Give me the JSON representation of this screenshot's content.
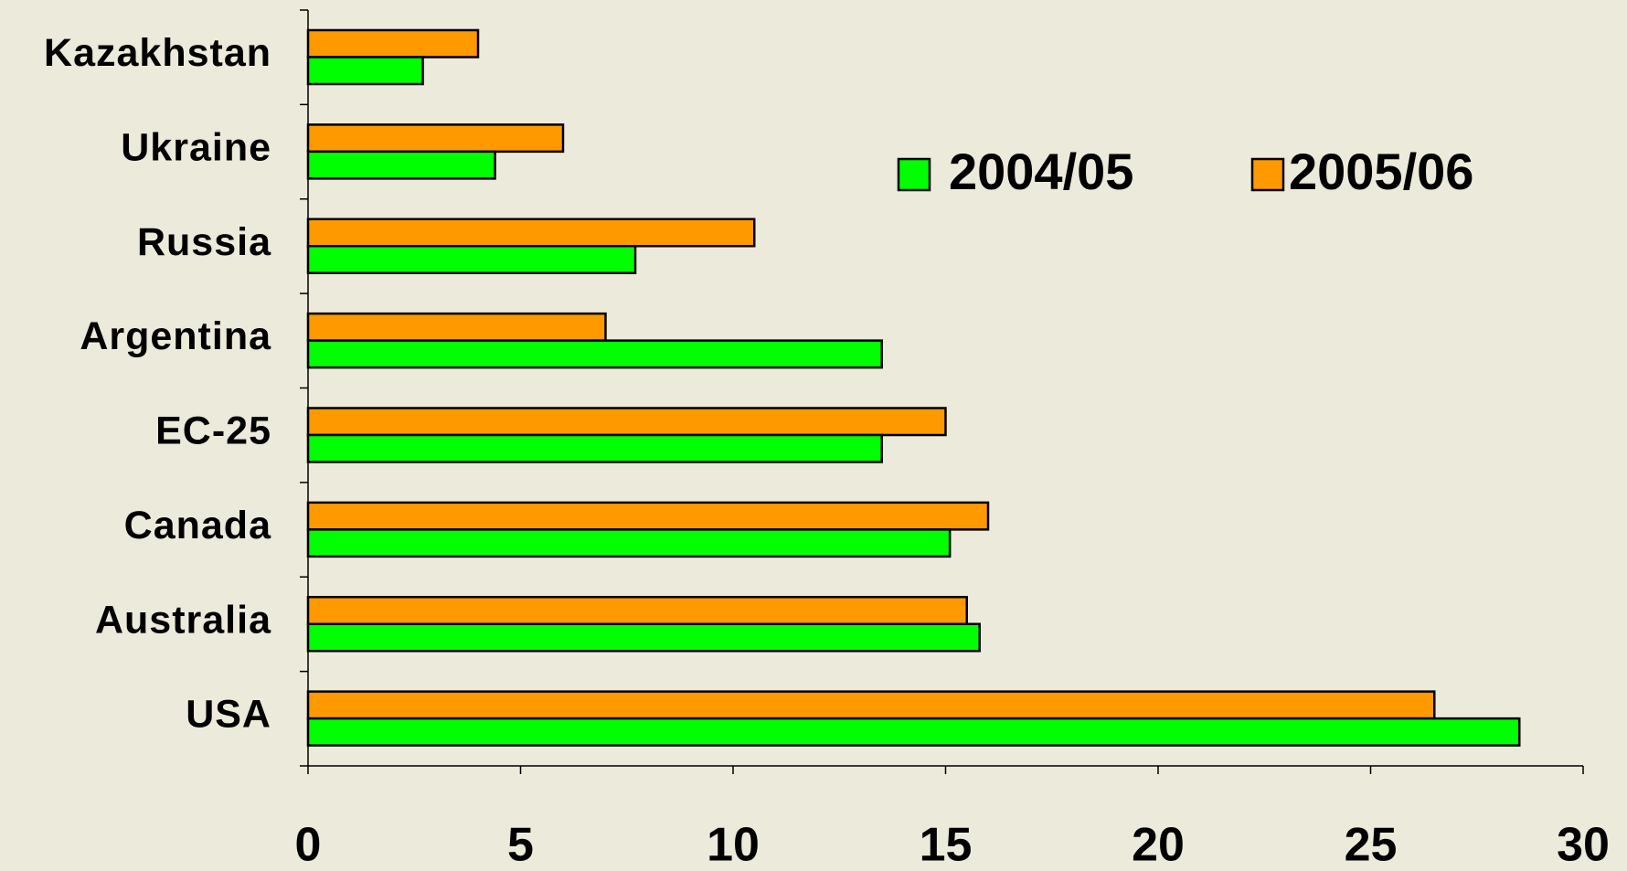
{
  "chart_data": {
    "type": "bar",
    "orientation": "horizontal",
    "categories": [
      "Kazakhstan",
      "Ukraine",
      "Russia",
      "Argentina",
      "EC-25",
      "Canada",
      "Australia",
      "USA"
    ],
    "series": [
      {
        "name": "2005/06",
        "color": "#ff9900",
        "values": [
          4.0,
          6.0,
          10.5,
          7.0,
          15.0,
          16.0,
          15.5,
          26.5
        ]
      },
      {
        "name": "2004/05",
        "color": "#00ff00",
        "values": [
          2.7,
          4.4,
          7.7,
          13.5,
          13.5,
          15.1,
          15.8,
          28.5
        ]
      }
    ],
    "xlim": [
      0,
      30
    ],
    "xticks": [
      0,
      5,
      10,
      15,
      20,
      25,
      30
    ],
    "grid": false
  }
}
